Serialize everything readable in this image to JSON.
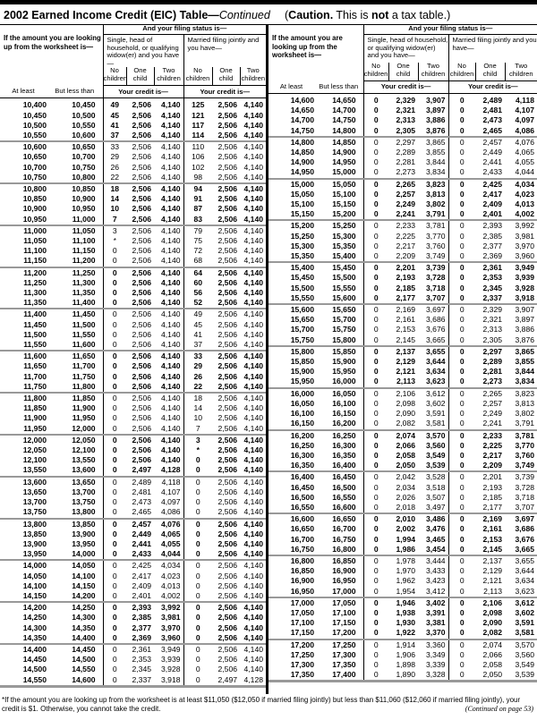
{
  "title": {
    "main": "2002 Earned Income Credit (EIC) Table—",
    "continued": "Continued"
  },
  "caution": {
    "open": "(",
    "bold": "Caution.",
    "mid": " This is ",
    "not": "not",
    "end": " a tax table.)"
  },
  "header": {
    "filing_status": "And your filing status is—",
    "lookup": "If the amount you are looking up from the worksheet is—",
    "single_group": "Single, head of household, or qualifying widow(er) and you have—",
    "married_group": "Married filing jointly and you have—",
    "no_children": "No children",
    "one_child": "One child",
    "two_children": "Two children",
    "at_least": "At least",
    "but_less_than": "But less than",
    "your_credit": "Your credit is—"
  },
  "left_rows": [
    [
      "10,400",
      "10,450",
      "49",
      "2,506",
      "4,140",
      "125",
      "2,506",
      "4,140"
    ],
    [
      "10,450",
      "10,500",
      "45",
      "2,506",
      "4,140",
      "121",
      "2,506",
      "4,140"
    ],
    [
      "10,500",
      "10,550",
      "41",
      "2,506",
      "4,140",
      "117",
      "2,506",
      "4,140"
    ],
    [
      "10,550",
      "10,600",
      "37",
      "2,506",
      "4,140",
      "114",
      "2,506",
      "4,140"
    ],
    [
      "10,600",
      "10,650",
      "33",
      "2,506",
      "4,140",
      "110",
      "2,506",
      "4,140"
    ],
    [
      "10,650",
      "10,700",
      "29",
      "2,506",
      "4,140",
      "106",
      "2,506",
      "4,140"
    ],
    [
      "10,700",
      "10,750",
      "26",
      "2,506",
      "4,140",
      "102",
      "2,506",
      "4,140"
    ],
    [
      "10,750",
      "10,800",
      "22",
      "2,506",
      "4,140",
      "98",
      "2,506",
      "4,140"
    ],
    [
      "10,800",
      "10,850",
      "18",
      "2,506",
      "4,140",
      "94",
      "2,506",
      "4,140"
    ],
    [
      "10,850",
      "10,900",
      "14",
      "2,506",
      "4,140",
      "91",
      "2,506",
      "4,140"
    ],
    [
      "10,900",
      "10,950",
      "10",
      "2,506",
      "4,140",
      "87",
      "2,506",
      "4,140"
    ],
    [
      "10,950",
      "11,000",
      "7",
      "2,506",
      "4,140",
      "83",
      "2,506",
      "4,140"
    ],
    [
      "11,000",
      "11,050",
      "3",
      "2,506",
      "4,140",
      "79",
      "2,506",
      "4,140"
    ],
    [
      "11,050",
      "11,100",
      "*",
      "2,506",
      "4,140",
      "75",
      "2,506",
      "4,140"
    ],
    [
      "11,100",
      "11,150",
      "0",
      "2,506",
      "4,140",
      "72",
      "2,506",
      "4,140"
    ],
    [
      "11,150",
      "11,200",
      "0",
      "2,506",
      "4,140",
      "68",
      "2,506",
      "4,140"
    ],
    [
      "11,200",
      "11,250",
      "0",
      "2,506",
      "4,140",
      "64",
      "2,506",
      "4,140"
    ],
    [
      "11,250",
      "11,300",
      "0",
      "2,506",
      "4,140",
      "60",
      "2,506",
      "4,140"
    ],
    [
      "11,300",
      "11,350",
      "0",
      "2,506",
      "4,140",
      "56",
      "2,506",
      "4,140"
    ],
    [
      "11,350",
      "11,400",
      "0",
      "2,506",
      "4,140",
      "52",
      "2,506",
      "4,140"
    ],
    [
      "11,400",
      "11,450",
      "0",
      "2,506",
      "4,140",
      "49",
      "2,506",
      "4,140"
    ],
    [
      "11,450",
      "11,500",
      "0",
      "2,506",
      "4,140",
      "45",
      "2,506",
      "4,140"
    ],
    [
      "11,500",
      "11,550",
      "0",
      "2,506",
      "4,140",
      "41",
      "2,506",
      "4,140"
    ],
    [
      "11,550",
      "11,600",
      "0",
      "2,506",
      "4,140",
      "37",
      "2,506",
      "4,140"
    ],
    [
      "11,600",
      "11,650",
      "0",
      "2,506",
      "4,140",
      "33",
      "2,506",
      "4,140"
    ],
    [
      "11,650",
      "11,700",
      "0",
      "2,506",
      "4,140",
      "29",
      "2,506",
      "4,140"
    ],
    [
      "11,700",
      "11,750",
      "0",
      "2,506",
      "4,140",
      "26",
      "2,506",
      "4,140"
    ],
    [
      "11,750",
      "11,800",
      "0",
      "2,506",
      "4,140",
      "22",
      "2,506",
      "4,140"
    ],
    [
      "11,800",
      "11,850",
      "0",
      "2,506",
      "4,140",
      "18",
      "2,506",
      "4,140"
    ],
    [
      "11,850",
      "11,900",
      "0",
      "2,506",
      "4,140",
      "14",
      "2,506",
      "4,140"
    ],
    [
      "11,900",
      "11,950",
      "0",
      "2,506",
      "4,140",
      "10",
      "2,506",
      "4,140"
    ],
    [
      "11,950",
      "12,000",
      "0",
      "2,506",
      "4,140",
      "7",
      "2,506",
      "4,140"
    ],
    [
      "12,000",
      "12,050",
      "0",
      "2,506",
      "4,140",
      "3",
      "2,506",
      "4,140"
    ],
    [
      "12,050",
      "12,100",
      "0",
      "2,506",
      "4,140",
      "*",
      "2,506",
      "4,140"
    ],
    [
      "12,100",
      "13,550",
      "0",
      "2,506",
      "4,140",
      "0",
      "2,506",
      "4,140"
    ],
    [
      "13,550",
      "13,600",
      "0",
      "2,497",
      "4,128",
      "0",
      "2,506",
      "4,140"
    ],
    [
      "13,600",
      "13,650",
      "0",
      "2,489",
      "4,118",
      "0",
      "2,506",
      "4,140"
    ],
    [
      "13,650",
      "13,700",
      "0",
      "2,481",
      "4,107",
      "0",
      "2,506",
      "4,140"
    ],
    [
      "13,700",
      "13,750",
      "0",
      "2,473",
      "4,097",
      "0",
      "2,506",
      "4,140"
    ],
    [
      "13,750",
      "13,800",
      "0",
      "2,465",
      "4,086",
      "0",
      "2,506",
      "4,140"
    ],
    [
      "13,800",
      "13,850",
      "0",
      "2,457",
      "4,076",
      "0",
      "2,506",
      "4,140"
    ],
    [
      "13,850",
      "13,900",
      "0",
      "2,449",
      "4,065",
      "0",
      "2,506",
      "4,140"
    ],
    [
      "13,900",
      "13,950",
      "0",
      "2,441",
      "4,055",
      "0",
      "2,506",
      "4,140"
    ],
    [
      "13,950",
      "14,000",
      "0",
      "2,433",
      "4,044",
      "0",
      "2,506",
      "4,140"
    ],
    [
      "14,000",
      "14,050",
      "0",
      "2,425",
      "4,034",
      "0",
      "2,506",
      "4,140"
    ],
    [
      "14,050",
      "14,100",
      "0",
      "2,417",
      "4,023",
      "0",
      "2,506",
      "4,140"
    ],
    [
      "14,100",
      "14,150",
      "0",
      "2,409",
      "4,013",
      "0",
      "2,506",
      "4,140"
    ],
    [
      "14,150",
      "14,200",
      "0",
      "2,401",
      "4,002",
      "0",
      "2,506",
      "4,140"
    ],
    [
      "14,200",
      "14,250",
      "0",
      "2,393",
      "3,992",
      "0",
      "2,506",
      "4,140"
    ],
    [
      "14,250",
      "14,300",
      "0",
      "2,385",
      "3,981",
      "0",
      "2,506",
      "4,140"
    ],
    [
      "14,300",
      "14,350",
      "0",
      "2,377",
      "3,970",
      "0",
      "2,506",
      "4,140"
    ],
    [
      "14,350",
      "14,400",
      "0",
      "2,369",
      "3,960",
      "0",
      "2,506",
      "4,140"
    ],
    [
      "14,400",
      "14,450",
      "0",
      "2,361",
      "3,949",
      "0",
      "2,506",
      "4,140"
    ],
    [
      "14,450",
      "14,500",
      "0",
      "2,353",
      "3,939",
      "0",
      "2,506",
      "4,140"
    ],
    [
      "14,500",
      "14,550",
      "0",
      "2,345",
      "3,928",
      "0",
      "2,506",
      "4,140"
    ],
    [
      "14,550",
      "14,600",
      "0",
      "2,337",
      "3,918",
      "0",
      "2,497",
      "4,128"
    ]
  ],
  "right_rows": [
    [
      "14,600",
      "14,650",
      "0",
      "2,329",
      "3,907",
      "0",
      "2,489",
      "4,118"
    ],
    [
      "14,650",
      "14,700",
      "0",
      "2,321",
      "3,897",
      "0",
      "2,481",
      "4,107"
    ],
    [
      "14,700",
      "14,750",
      "0",
      "2,313",
      "3,886",
      "0",
      "2,473",
      "4,097"
    ],
    [
      "14,750",
      "14,800",
      "0",
      "2,305",
      "3,876",
      "0",
      "2,465",
      "4,086"
    ],
    [
      "14,800",
      "14,850",
      "0",
      "2,297",
      "3,865",
      "0",
      "2,457",
      "4,076"
    ],
    [
      "14,850",
      "14,900",
      "0",
      "2,289",
      "3,855",
      "0",
      "2,449",
      "4,065"
    ],
    [
      "14,900",
      "14,950",
      "0",
      "2,281",
      "3,844",
      "0",
      "2,441",
      "4,055"
    ],
    [
      "14,950",
      "15,000",
      "0",
      "2,273",
      "3,834",
      "0",
      "2,433",
      "4,044"
    ],
    [
      "15,000",
      "15,050",
      "0",
      "2,265",
      "3,823",
      "0",
      "2,425",
      "4,034"
    ],
    [
      "15,050",
      "15,100",
      "0",
      "2,257",
      "3,813",
      "0",
      "2,417",
      "4,023"
    ],
    [
      "15,100",
      "15,150",
      "0",
      "2,249",
      "3,802",
      "0",
      "2,409",
      "4,013"
    ],
    [
      "15,150",
      "15,200",
      "0",
      "2,241",
      "3,791",
      "0",
      "2,401",
      "4,002"
    ],
    [
      "15,200",
      "15,250",
      "0",
      "2,233",
      "3,781",
      "0",
      "2,393",
      "3,992"
    ],
    [
      "15,250",
      "15,300",
      "0",
      "2,225",
      "3,770",
      "0",
      "2,385",
      "3,981"
    ],
    [
      "15,300",
      "15,350",
      "0",
      "2,217",
      "3,760",
      "0",
      "2,377",
      "3,970"
    ],
    [
      "15,350",
      "15,400",
      "0",
      "2,209",
      "3,749",
      "0",
      "2,369",
      "3,960"
    ],
    [
      "15,400",
      "15,450",
      "0",
      "2,201",
      "3,739",
      "0",
      "2,361",
      "3,949"
    ],
    [
      "15,450",
      "15,500",
      "0",
      "2,193",
      "3,728",
      "0",
      "2,353",
      "3,939"
    ],
    [
      "15,500",
      "15,550",
      "0",
      "2,185",
      "3,718",
      "0",
      "2,345",
      "3,928"
    ],
    [
      "15,550",
      "15,600",
      "0",
      "2,177",
      "3,707",
      "0",
      "2,337",
      "3,918"
    ],
    [
      "15,600",
      "15,650",
      "0",
      "2,169",
      "3,697",
      "0",
      "2,329",
      "3,907"
    ],
    [
      "15,650",
      "15,700",
      "0",
      "2,161",
      "3,686",
      "0",
      "2,321",
      "3,897"
    ],
    [
      "15,700",
      "15,750",
      "0",
      "2,153",
      "3,676",
      "0",
      "2,313",
      "3,886"
    ],
    [
      "15,750",
      "15,800",
      "0",
      "2,145",
      "3,665",
      "0",
      "2,305",
      "3,876"
    ],
    [
      "15,800",
      "15,850",
      "0",
      "2,137",
      "3,655",
      "0",
      "2,297",
      "3,865"
    ],
    [
      "15,850",
      "15,900",
      "0",
      "2,129",
      "3,644",
      "0",
      "2,289",
      "3,855"
    ],
    [
      "15,900",
      "15,950",
      "0",
      "2,121",
      "3,634",
      "0",
      "2,281",
      "3,844"
    ],
    [
      "15,950",
      "16,000",
      "0",
      "2,113",
      "3,623",
      "0",
      "2,273",
      "3,834"
    ],
    [
      "16,000",
      "16,050",
      "0",
      "2,106",
      "3,612",
      "0",
      "2,265",
      "3,823"
    ],
    [
      "16,050",
      "16,100",
      "0",
      "2,098",
      "3,602",
      "0",
      "2,257",
      "3,813"
    ],
    [
      "16,100",
      "16,150",
      "0",
      "2,090",
      "3,591",
      "0",
      "2,249",
      "3,802"
    ],
    [
      "16,150",
      "16,200",
      "0",
      "2,082",
      "3,581",
      "0",
      "2,241",
      "3,791"
    ],
    [
      "16,200",
      "16,250",
      "0",
      "2,074",
      "3,570",
      "0",
      "2,233",
      "3,781"
    ],
    [
      "16,250",
      "16,300",
      "0",
      "2,066",
      "3,560",
      "0",
      "2,225",
      "3,770"
    ],
    [
      "16,300",
      "16,350",
      "0",
      "2,058",
      "3,549",
      "0",
      "2,217",
      "3,760"
    ],
    [
      "16,350",
      "16,400",
      "0",
      "2,050",
      "3,539",
      "0",
      "2,209",
      "3,749"
    ],
    [
      "16,400",
      "16,450",
      "0",
      "2,042",
      "3,528",
      "0",
      "2,201",
      "3,739"
    ],
    [
      "16,450",
      "16,500",
      "0",
      "2,034",
      "3,518",
      "0",
      "2,193",
      "3,728"
    ],
    [
      "16,500",
      "16,550",
      "0",
      "2,026",
      "3,507",
      "0",
      "2,185",
      "3,718"
    ],
    [
      "16,550",
      "16,600",
      "0",
      "2,018",
      "3,497",
      "0",
      "2,177",
      "3,707"
    ],
    [
      "16,600",
      "16,650",
      "0",
      "2,010",
      "3,486",
      "0",
      "2,169",
      "3,697"
    ],
    [
      "16,650",
      "16,700",
      "0",
      "2,002",
      "3,476",
      "0",
      "2,161",
      "3,686"
    ],
    [
      "16,700",
      "16,750",
      "0",
      "1,994",
      "3,465",
      "0",
      "2,153",
      "3,676"
    ],
    [
      "16,750",
      "16,800",
      "0",
      "1,986",
      "3,454",
      "0",
      "2,145",
      "3,665"
    ],
    [
      "16,800",
      "16,850",
      "0",
      "1,978",
      "3,444",
      "0",
      "2,137",
      "3,655"
    ],
    [
      "16,850",
      "16,900",
      "0",
      "1,970",
      "3,433",
      "0",
      "2,129",
      "3,644"
    ],
    [
      "16,900",
      "16,950",
      "0",
      "1,962",
      "3,423",
      "0",
      "2,121",
      "3,634"
    ],
    [
      "16,950",
      "17,000",
      "0",
      "1,954",
      "3,412",
      "0",
      "2,113",
      "3,623"
    ],
    [
      "17,000",
      "17,050",
      "0",
      "1,946",
      "3,402",
      "0",
      "2,106",
      "3,612"
    ],
    [
      "17,050",
      "17,100",
      "0",
      "1,938",
      "3,391",
      "0",
      "2,098",
      "3,602"
    ],
    [
      "17,100",
      "17,150",
      "0",
      "1,930",
      "3,381",
      "0",
      "2,090",
      "3,591"
    ],
    [
      "17,150",
      "17,200",
      "0",
      "1,922",
      "3,370",
      "0",
      "2,082",
      "3,581"
    ],
    [
      "17,200",
      "17,250",
      "0",
      "1,914",
      "3,360",
      "0",
      "2,074",
      "3,570"
    ],
    [
      "17,250",
      "17,300",
      "0",
      "1,906",
      "3,349",
      "0",
      "2,066",
      "3,560"
    ],
    [
      "17,300",
      "17,350",
      "0",
      "1,898",
      "3,339",
      "0",
      "2,058",
      "3,549"
    ],
    [
      "17,350",
      "17,400",
      "0",
      "1,890",
      "3,328",
      "0",
      "2,050",
      "3,539"
    ]
  ],
  "footnote": "*If the amount you are looking up from the worksheet is at least $11,050 ($12,050 if married filing jointly) but less than $11,060 ($12,060 if married filing jointly), your credit is $1. Otherwise, you cannot take the credit.",
  "continued_note": "(Continued on page 53)"
}
